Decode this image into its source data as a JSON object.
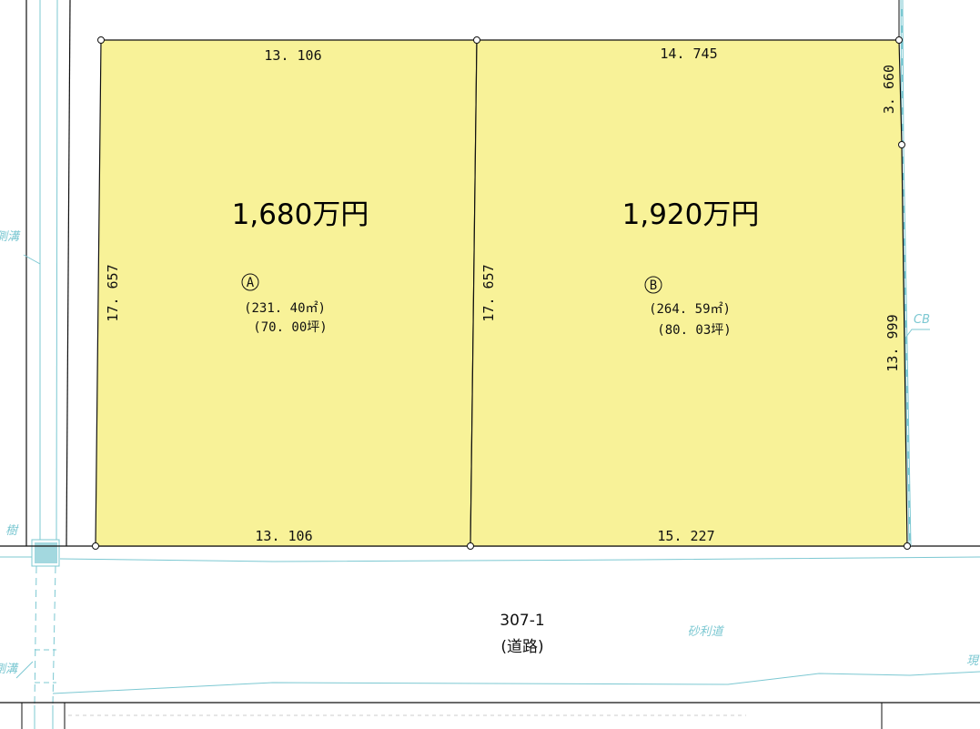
{
  "colors": {
    "lot_fill": "#f8f298",
    "boundary": "#111111",
    "survey_line": "#7cc8d2"
  },
  "lots": [
    {
      "id": "lot-a",
      "label": "A",
      "price": "1,680万円",
      "area_m2": "(231. 40㎡)",
      "area_tsubo": "(70. 00坪)",
      "sides": {
        "top": "13. 106",
        "bottom": "13. 106",
        "left": "17. 657"
      }
    },
    {
      "id": "lot-b",
      "label": "B",
      "price": "1,920万円",
      "area_m2": "(264. 59㎡)",
      "area_tsubo": "(80. 03坪)",
      "sides": {
        "top": "14. 745",
        "bottom": "15. 227",
        "left": "17. 657",
        "right_upper": "3. 660",
        "right_lower": "13. 999"
      }
    }
  ],
  "road": {
    "number": "307-1",
    "label": "(道路)",
    "surface": "砂利道"
  },
  "notes": {
    "gutter_upper": "側溝",
    "gutter_lower": "側溝",
    "tree": "樹",
    "cb": "CB",
    "right_edge": "現"
  }
}
